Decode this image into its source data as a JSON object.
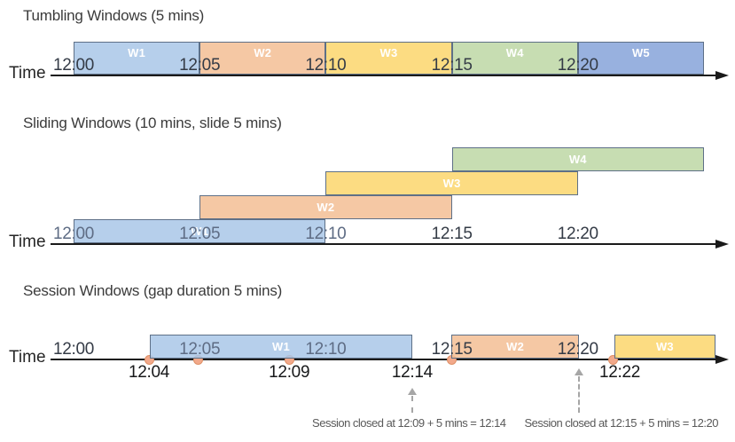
{
  "canvas": {
    "background": "#FFFFFF"
  },
  "palette": {
    "blue_fill": "rgba(169,199,232,0.85)",
    "orange_fill": "rgba(243,190,148,0.85)",
    "yellow_fill": "rgba(251,214,108,0.85)",
    "green_fill": "rgba(189,215,164,0.85)",
    "indigo_fill": "rgba(143,170,220,0.92)",
    "bar_border": "#5E7087",
    "axis_color": "#1A1A1A",
    "dot_fill": "#F2A98B",
    "dot_border": "#DE9066",
    "annotation_gray": "#595959",
    "dashed_arrow_gray": "#A6A6A6"
  },
  "sections": [
    {
      "id": "tumbling",
      "title": "Tumbling Windows (5 mins)",
      "time_label": "Time",
      "ticks": [
        {
          "label": "12:00",
          "t": 0,
          "tone": "dark"
        },
        {
          "label": "12:05",
          "t": 5,
          "tone": "dark"
        },
        {
          "label": "12:10",
          "t": 10,
          "tone": "dark"
        },
        {
          "label": "12:15",
          "t": 15,
          "tone": "dark"
        },
        {
          "label": "12:20",
          "t": 20,
          "tone": "dark"
        }
      ],
      "windows": [
        {
          "label": "W1",
          "t0": 0,
          "t1": 5,
          "color": "blue_fill"
        },
        {
          "label": "W2",
          "t0": 5,
          "t1": 10,
          "color": "orange_fill"
        },
        {
          "label": "W3",
          "t0": 10,
          "t1": 15,
          "color": "yellow_fill"
        },
        {
          "label": "W4",
          "t0": 15,
          "t1": 20,
          "color": "green_fill"
        },
        {
          "label": "W5",
          "t0": 20,
          "t1": 25,
          "color": "indigo_fill"
        }
      ]
    },
    {
      "id": "sliding",
      "title": "Sliding Windows (10 mins, slide 5 mins)",
      "time_label": "Time",
      "ticks": [
        {
          "label": "12:00",
          "t": 0,
          "tone": "muted"
        },
        {
          "label": "12:05",
          "t": 5,
          "tone": "muted"
        },
        {
          "label": "12:10",
          "t": 10,
          "tone": "muted"
        },
        {
          "label": "12:15",
          "t": 15,
          "tone": "dark"
        },
        {
          "label": "12:20",
          "t": 20,
          "tone": "dark"
        }
      ],
      "windows": [
        {
          "label": "W1",
          "t0": 0,
          "t1": 10,
          "row": 0,
          "color": "blue_fill"
        },
        {
          "label": "W2",
          "t0": 5,
          "t1": 15,
          "row": 1,
          "color": "orange_fill"
        },
        {
          "label": "W3",
          "t0": 10,
          "t1": 20,
          "row": 2,
          "color": "yellow_fill"
        },
        {
          "label": "W4",
          "t0": 15,
          "t1": 25,
          "row": 3,
          "color": "green_fill"
        }
      ]
    },
    {
      "id": "session",
      "title": "Session Windows (gap duration 5 mins)",
      "time_label": "Time",
      "ticks": [
        {
          "label": "12:00",
          "t": 0,
          "tone": "dark"
        },
        {
          "label": "12:05",
          "t": 5,
          "tone": "muted"
        },
        {
          "label": "12:10",
          "t": 10,
          "tone": "muted"
        },
        {
          "label": "12:15",
          "t": 15,
          "tone": "dark"
        },
        {
          "label": "12:20",
          "t": 20,
          "tone": "dark"
        }
      ],
      "windows": [
        {
          "label": "W1",
          "t0": 3.02,
          "t1": 13.43,
          "color": "blue_fill"
        },
        {
          "label": "W2",
          "t0": 14.98,
          "t1": 20.05,
          "color": "orange_fill"
        },
        {
          "label": "W3",
          "t0": 21.45,
          "t1": 25.45,
          "color": "yellow_fill"
        }
      ],
      "events": [
        {
          "t": 2.99
        },
        {
          "t": 4.95
        },
        {
          "t": 8.55
        },
        {
          "t": 14.98
        },
        {
          "t": 21.4
        }
      ],
      "labels_below": [
        {
          "label": "12:04",
          "t": 2.99
        },
        {
          "label": "12:09",
          "t": 8.55
        },
        {
          "label": "12:14",
          "t": 13.43
        },
        {
          "label": "12:22",
          "t": 21.66
        }
      ],
      "annotations": [
        {
          "text": "Session closed at 12:09 + 5 mins = 12:14",
          "t_center": 13.3,
          "arrow_t": 13.43,
          "arrow_size": "short"
        },
        {
          "text": "Session closed at 12:15 + 5 mins = 12:20",
          "t_center": 21.72,
          "arrow_t": 20.05,
          "arrow_size": "long"
        }
      ]
    }
  ]
}
